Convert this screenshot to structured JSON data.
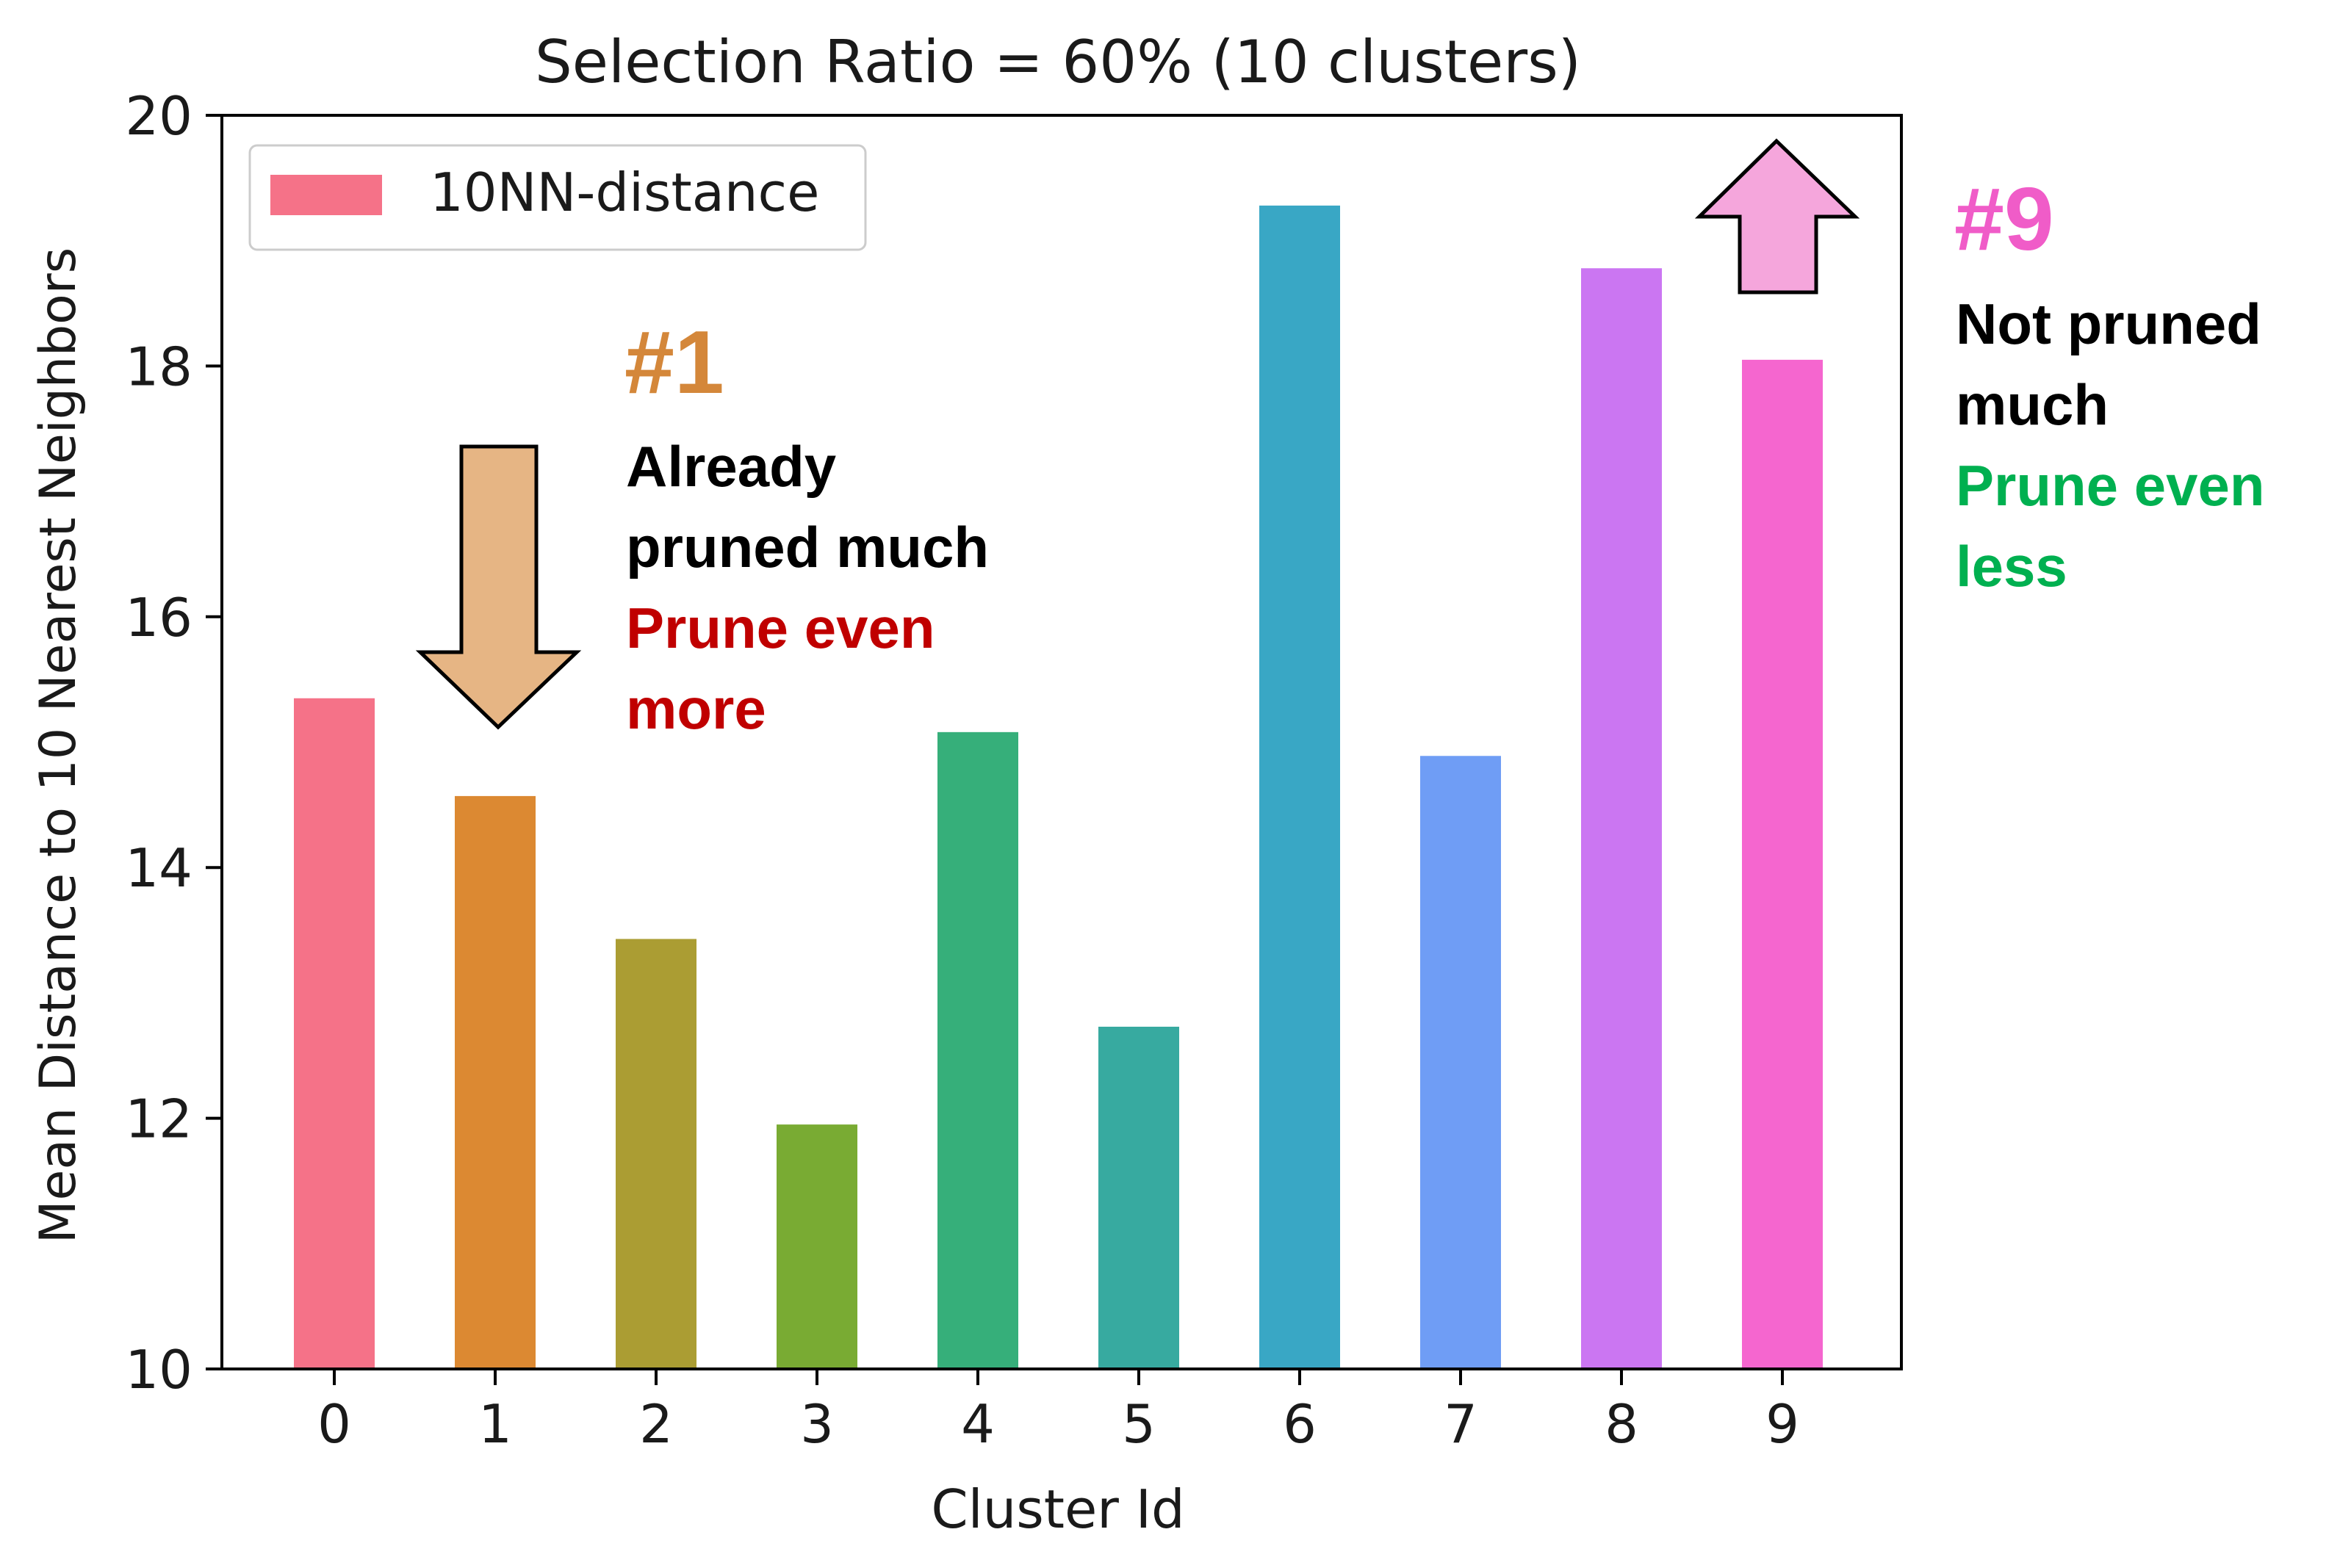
{
  "chart_data": {
    "type": "bar",
    "title": "Selection Ratio = 60% (10 clusters)",
    "xlabel": "Cluster Id",
    "ylabel": "Mean Distance to 10 Nearest Neighbors",
    "categories": [
      "0",
      "1",
      "2",
      "3",
      "4",
      "5",
      "6",
      "7",
      "8",
      "9"
    ],
    "series": [
      {
        "name": "10NN-distance",
        "values": [
          15.35,
          14.57,
          13.43,
          11.95,
          15.08,
          12.73,
          19.28,
          14.89,
          18.78,
          18.05
        ]
      }
    ],
    "bar_colors": [
      "#f57288",
      "#dc8932",
      "#ab9d33",
      "#79ab33",
      "#36af7a",
      "#37aaa0",
      "#39a7c5",
      "#6f9df5",
      "#cb76f2",
      "#f566cf"
    ],
    "ylim": [
      10,
      20
    ],
    "yticks": [
      "10",
      "12",
      "14",
      "16",
      "18",
      "20"
    ],
    "legend_position": "top-left",
    "grid": false
  },
  "annotations": {
    "cluster1": {
      "heading": "#1",
      "heading_color": "#d4873a",
      "lines": [
        {
          "text": "Already",
          "color": "#000000"
        },
        {
          "text": "pruned much",
          "color": "#000000"
        },
        {
          "text": "Prune even",
          "color": "#c00000"
        },
        {
          "text": "more",
          "color": "#c00000"
        }
      ],
      "arrow": "down-arrow",
      "arrow_fill": "#e6b584"
    },
    "cluster9": {
      "heading": "#9",
      "heading_color": "#f05cc8",
      "lines": [
        {
          "text": "Not pruned",
          "color": "#000000"
        },
        {
          "text": "much",
          "color": "#000000"
        },
        {
          "text": "Prune even",
          "color": "#00b050"
        },
        {
          "text": "less",
          "color": "#00b050"
        }
      ],
      "arrow": "up-arrow",
      "arrow_fill": "#f5a6dc"
    }
  }
}
